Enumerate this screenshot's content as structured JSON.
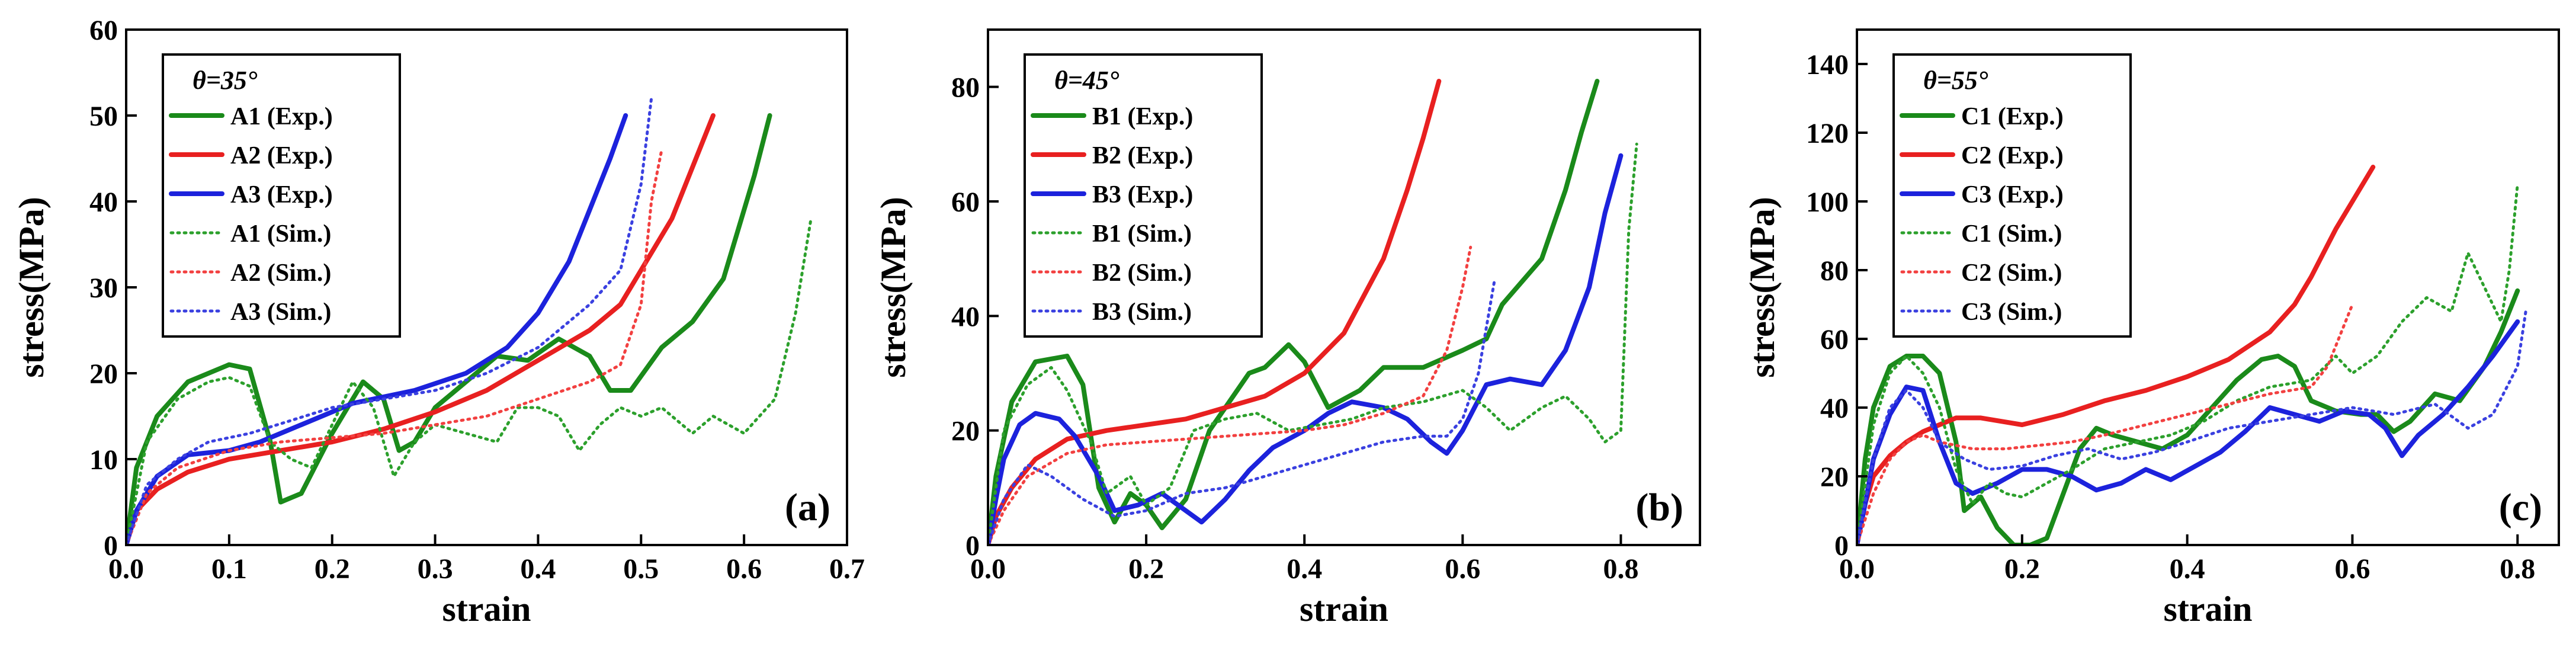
{
  "chart_data": [
    {
      "panel": "(a)",
      "type": "line",
      "legend_title": "θ=35°",
      "legend_position": "top-left",
      "xlabel": "strain",
      "ylabel": "stress(MPa)",
      "xlim": [
        0,
        0.7
      ],
      "ylim": [
        0,
        60
      ],
      "xticks": [
        "0.0",
        "0.1",
        "0.2",
        "0.3",
        "0.4",
        "0.5",
        "0.6",
        "0.7"
      ],
      "yticks": [
        "0",
        "10",
        "20",
        "30",
        "40",
        "50",
        "60"
      ],
      "xtick_values": [
        0,
        0.1,
        0.2,
        0.3,
        0.4,
        0.5,
        0.6,
        0.7
      ],
      "ytick_values": [
        0,
        10,
        20,
        30,
        40,
        50,
        60
      ],
      "series": [
        {
          "name": "A1 (Exp.)",
          "color": "#1a8a1a",
          "style": "solid",
          "x": [
            0,
            0.01,
            0.03,
            0.06,
            0.1,
            0.12,
            0.14,
            0.15,
            0.17,
            0.2,
            0.23,
            0.25,
            0.265,
            0.28,
            0.3,
            0.33,
            0.36,
            0.39,
            0.42,
            0.45,
            0.47,
            0.49,
            0.52,
            0.55,
            0.58,
            0.61,
            0.625
          ],
          "y": [
            0,
            9,
            15,
            19,
            21,
            20.5,
            12,
            5,
            6,
            13,
            19,
            17,
            11,
            12,
            16,
            19,
            22,
            21.5,
            24,
            22,
            18,
            18,
            23,
            26,
            31,
            43,
            50
          ]
        },
        {
          "name": "A2 (Exp.)",
          "color": "#e82020",
          "style": "solid",
          "x": [
            0,
            0.01,
            0.03,
            0.06,
            0.1,
            0.15,
            0.2,
            0.25,
            0.3,
            0.35,
            0.4,
            0.45,
            0.48,
            0.5,
            0.53,
            0.55,
            0.57
          ],
          "y": [
            0,
            4,
            6.5,
            8.5,
            10,
            11,
            12,
            13.5,
            15.5,
            18,
            21.5,
            25,
            28,
            32,
            38,
            44,
            50
          ]
        },
        {
          "name": "A3 (Exp.)",
          "color": "#1c22dc",
          "style": "solid",
          "x": [
            0,
            0.01,
            0.03,
            0.06,
            0.1,
            0.13,
            0.17,
            0.22,
            0.28,
            0.33,
            0.37,
            0.4,
            0.43,
            0.45,
            0.47,
            0.485
          ],
          "y": [
            0,
            4,
            8,
            10.5,
            11,
            12,
            14,
            16.5,
            18,
            20,
            23,
            27,
            33,
            39,
            45,
            50
          ]
        },
        {
          "name": "A1 (Sim.)",
          "color": "#2ca02c",
          "style": "dotted",
          "x": [
            0,
            0.02,
            0.05,
            0.08,
            0.1,
            0.12,
            0.14,
            0.16,
            0.18,
            0.2,
            0.22,
            0.24,
            0.26,
            0.28,
            0.3,
            0.33,
            0.36,
            0.38,
            0.4,
            0.42,
            0.44,
            0.46,
            0.48,
            0.5,
            0.52,
            0.55,
            0.57,
            0.6,
            0.63,
            0.65,
            0.665
          ],
          "y": [
            0,
            12,
            17,
            19,
            19.5,
            18.5,
            12,
            10,
            9,
            14,
            19,
            16,
            8,
            12,
            14,
            13,
            12,
            16,
            16,
            15,
            11,
            14,
            16,
            15,
            16,
            13,
            15,
            13,
            17,
            27,
            38
          ]
        },
        {
          "name": "A2 (Sim.)",
          "color": "#f24040",
          "style": "dotted",
          "x": [
            0,
            0.02,
            0.05,
            0.1,
            0.15,
            0.2,
            0.25,
            0.3,
            0.35,
            0.4,
            0.45,
            0.48,
            0.5,
            0.51,
            0.52
          ],
          "y": [
            0,
            6,
            9,
            11,
            12,
            12.5,
            13,
            14,
            15,
            17,
            19,
            21,
            28,
            40,
            46
          ]
        },
        {
          "name": "A3 (Sim.)",
          "color": "#3a40e0",
          "style": "dotted",
          "x": [
            0,
            0.02,
            0.05,
            0.08,
            0.12,
            0.16,
            0.2,
            0.25,
            0.3,
            0.35,
            0.4,
            0.45,
            0.48,
            0.5,
            0.51
          ],
          "y": [
            0,
            7,
            10,
            12,
            13,
            14.5,
            16,
            17,
            18,
            20,
            23,
            28,
            32,
            42,
            52
          ]
        }
      ]
    },
    {
      "panel": "(b)",
      "type": "line",
      "legend_title": "θ=45°",
      "legend_position": "top-left",
      "xlabel": "strain",
      "ylabel": "stress(MPa)",
      "xlim": [
        0,
        0.9
      ],
      "ylim": [
        0,
        90
      ],
      "xticks": [
        "0.0",
        "0.2",
        "0.4",
        "0.6",
        "0.8"
      ],
      "yticks": [
        "0",
        "20",
        "40",
        "60",
        "80"
      ],
      "xtick_values": [
        0,
        0.2,
        0.4,
        0.6,
        0.8
      ],
      "ytick_values": [
        0,
        20,
        40,
        60,
        80
      ],
      "series": [
        {
          "name": "B1 (Exp.)",
          "color": "#1a8a1a",
          "style": "solid",
          "x": [
            0,
            0.01,
            0.03,
            0.06,
            0.1,
            0.12,
            0.14,
            0.16,
            0.18,
            0.2,
            0.22,
            0.25,
            0.28,
            0.31,
            0.33,
            0.35,
            0.38,
            0.4,
            0.43,
            0.47,
            0.5,
            0.55,
            0.6,
            0.63,
            0.65,
            0.7,
            0.73,
            0.75,
            0.77
          ],
          "y": [
            0,
            12,
            25,
            32,
            33,
            28,
            10,
            4,
            9,
            7,
            3,
            8,
            20,
            26,
            30,
            31,
            35,
            32,
            24,
            27,
            31,
            31,
            34,
            36,
            42,
            50,
            62,
            72,
            81
          ]
        },
        {
          "name": "B2 (Exp.)",
          "color": "#e82020",
          "style": "solid",
          "x": [
            0,
            0.01,
            0.03,
            0.06,
            0.1,
            0.15,
            0.2,
            0.25,
            0.3,
            0.35,
            0.4,
            0.45,
            0.5,
            0.53,
            0.55,
            0.57
          ],
          "y": [
            0,
            5,
            10,
            15,
            18.5,
            20,
            21,
            22,
            24,
            26,
            30,
            37,
            50,
            62,
            71,
            81
          ]
        },
        {
          "name": "B3 (Exp.)",
          "color": "#1c22dc",
          "style": "solid",
          "x": [
            0,
            0.01,
            0.02,
            0.04,
            0.06,
            0.09,
            0.11,
            0.14,
            0.16,
            0.19,
            0.22,
            0.24,
            0.27,
            0.3,
            0.33,
            0.36,
            0.4,
            0.43,
            0.46,
            0.5,
            0.53,
            0.56,
            0.58,
            0.6,
            0.63,
            0.66,
            0.7,
            0.73,
            0.76,
            0.78,
            0.8
          ],
          "y": [
            0,
            8,
            15,
            21,
            23,
            22,
            19,
            12,
            6,
            7,
            9,
            7,
            4,
            8,
            13,
            17,
            20,
            23,
            25,
            24,
            22,
            18,
            16,
            20,
            28,
            29,
            28,
            34,
            45,
            58,
            68
          ]
        },
        {
          "name": "B1 (Sim.)",
          "color": "#2ca02c",
          "style": "dotted",
          "x": [
            0,
            0.02,
            0.05,
            0.08,
            0.1,
            0.13,
            0.15,
            0.18,
            0.2,
            0.23,
            0.26,
            0.3,
            0.34,
            0.38,
            0.42,
            0.46,
            0.5,
            0.55,
            0.6,
            0.63,
            0.66,
            0.7,
            0.73,
            0.76,
            0.78,
            0.8,
            0.81,
            0.82
          ],
          "y": [
            0,
            20,
            28,
            31,
            27,
            18,
            9,
            12,
            7,
            10,
            20,
            22,
            23,
            20,
            21,
            22,
            24,
            25,
            27,
            24,
            20,
            24,
            26,
            22,
            18,
            20,
            55,
            70
          ]
        },
        {
          "name": "B2 (Sim.)",
          "color": "#f24040",
          "style": "dotted",
          "x": [
            0,
            0.02,
            0.05,
            0.1,
            0.15,
            0.2,
            0.25,
            0.3,
            0.35,
            0.4,
            0.45,
            0.5,
            0.55,
            0.58,
            0.6,
            0.61
          ],
          "y": [
            0,
            6,
            12,
            16,
            17.5,
            18,
            18.5,
            19,
            19.5,
            20,
            21,
            23,
            26,
            34,
            45,
            52
          ]
        },
        {
          "name": "B3 (Sim.)",
          "color": "#3a40e0",
          "style": "dotted",
          "x": [
            0,
            0.02,
            0.05,
            0.08,
            0.12,
            0.16,
            0.2,
            0.25,
            0.3,
            0.35,
            0.4,
            0.45,
            0.5,
            0.55,
            0.58,
            0.6,
            0.62,
            0.64
          ],
          "y": [
            0,
            8,
            14,
            12,
            8,
            5,
            6,
            9,
            10,
            12,
            14,
            16,
            18,
            19,
            19,
            22,
            30,
            46
          ]
        }
      ]
    },
    {
      "panel": "(c)",
      "type": "line",
      "legend_title": "θ=55°",
      "legend_position": "top-left",
      "xlabel": "strain",
      "ylabel": "stress(MPa)",
      "xlim": [
        0,
        0.85
      ],
      "ylim": [
        0,
        150
      ],
      "xticks": [
        "0.0",
        "0.2",
        "0.4",
        "0.6",
        "0.8"
      ],
      "yticks": [
        "0",
        "20",
        "40",
        "60",
        "80",
        "100",
        "120",
        "140"
      ],
      "xtick_values": [
        0,
        0.2,
        0.4,
        0.6,
        0.8
      ],
      "ytick_values": [
        0,
        20,
        40,
        60,
        80,
        100,
        120,
        140
      ],
      "series": [
        {
          "name": "C1 (Exp.)",
          "color": "#1a8a1a",
          "style": "solid",
          "x": [
            0,
            0.01,
            0.02,
            0.04,
            0.06,
            0.08,
            0.1,
            0.12,
            0.13,
            0.15,
            0.17,
            0.19,
            0.21,
            0.23,
            0.25,
            0.27,
            0.29,
            0.31,
            0.34,
            0.37,
            0.4,
            0.43,
            0.46,
            0.49,
            0.51,
            0.53,
            0.55,
            0.58,
            0.61,
            0.63,
            0.65,
            0.67,
            0.7,
            0.73,
            0.76,
            0.78,
            0.8
          ],
          "y": [
            0,
            25,
            40,
            52,
            55,
            55,
            50,
            30,
            10,
            14,
            5,
            0,
            0,
            2,
            15,
            28,
            34,
            32,
            30,
            28,
            32,
            40,
            48,
            54,
            55,
            52,
            42,
            39,
            38,
            38,
            33,
            36,
            44,
            42,
            52,
            62,
            74
          ]
        },
        {
          "name": "C2 (Exp.)",
          "color": "#e82020",
          "style": "solid",
          "x": [
            0,
            0.01,
            0.02,
            0.04,
            0.06,
            0.08,
            0.1,
            0.12,
            0.15,
            0.2,
            0.25,
            0.3,
            0.35,
            0.4,
            0.45,
            0.5,
            0.53,
            0.55,
            0.58,
            0.6,
            0.625
          ],
          "y": [
            0,
            12,
            20,
            26,
            30,
            33,
            35,
            37,
            37,
            35,
            38,
            42,
            45,
            49,
            54,
            62,
            70,
            78,
            92,
            100,
            110
          ]
        },
        {
          "name": "C3 (Exp.)",
          "color": "#1c22dc",
          "style": "solid",
          "x": [
            0,
            0.01,
            0.02,
            0.04,
            0.06,
            0.08,
            0.1,
            0.12,
            0.14,
            0.17,
            0.2,
            0.23,
            0.26,
            0.29,
            0.32,
            0.35,
            0.38,
            0.41,
            0.44,
            0.47,
            0.5,
            0.53,
            0.56,
            0.59,
            0.62,
            0.64,
            0.66,
            0.68,
            0.71,
            0.74,
            0.77,
            0.8
          ],
          "y": [
            0,
            12,
            25,
            38,
            46,
            45,
            30,
            18,
            15,
            18,
            22,
            22,
            20,
            16,
            18,
            22,
            19,
            23,
            27,
            33,
            40,
            38,
            36,
            39,
            38,
            34,
            26,
            32,
            38,
            46,
            55,
            65
          ]
        },
        {
          "name": "C1 (Sim.)",
          "color": "#2ca02c",
          "style": "dotted",
          "x": [
            0,
            0.02,
            0.04,
            0.06,
            0.08,
            0.1,
            0.12,
            0.14,
            0.16,
            0.18,
            0.2,
            0.23,
            0.26,
            0.3,
            0.34,
            0.38,
            0.42,
            0.46,
            0.5,
            0.55,
            0.58,
            0.6,
            0.63,
            0.66,
            0.69,
            0.72,
            0.74,
            0.76,
            0.78,
            0.79,
            0.8
          ],
          "y": [
            0,
            35,
            50,
            55,
            50,
            40,
            22,
            12,
            18,
            15,
            14,
            18,
            22,
            28,
            30,
            32,
            36,
            42,
            46,
            48,
            55,
            50,
            55,
            65,
            72,
            68,
            85,
            75,
            65,
            80,
            105
          ]
        },
        {
          "name": "C2 (Sim.)",
          "color": "#f24040",
          "style": "dotted",
          "x": [
            0,
            0.02,
            0.04,
            0.06,
            0.08,
            0.1,
            0.14,
            0.18,
            0.22,
            0.26,
            0.3,
            0.35,
            0.4,
            0.45,
            0.5,
            0.55,
            0.57,
            0.6
          ],
          "y": [
            0,
            15,
            25,
            30,
            32,
            30,
            28,
            28,
            29,
            30,
            32,
            35,
            38,
            41,
            44,
            46,
            52,
            70
          ]
        },
        {
          "name": "C3 (Sim.)",
          "color": "#3a40e0",
          "style": "dotted",
          "x": [
            0,
            0.02,
            0.04,
            0.06,
            0.08,
            0.1,
            0.13,
            0.16,
            0.2,
            0.24,
            0.28,
            0.32,
            0.36,
            0.4,
            0.45,
            0.5,
            0.55,
            0.6,
            0.65,
            0.7,
            0.74,
            0.77,
            0.8,
            0.81
          ],
          "y": [
            0,
            25,
            40,
            45,
            40,
            30,
            25,
            22,
            23,
            26,
            28,
            25,
            27,
            30,
            34,
            36,
            38,
            40,
            38,
            41,
            34,
            38,
            52,
            68
          ]
        }
      ]
    }
  ]
}
